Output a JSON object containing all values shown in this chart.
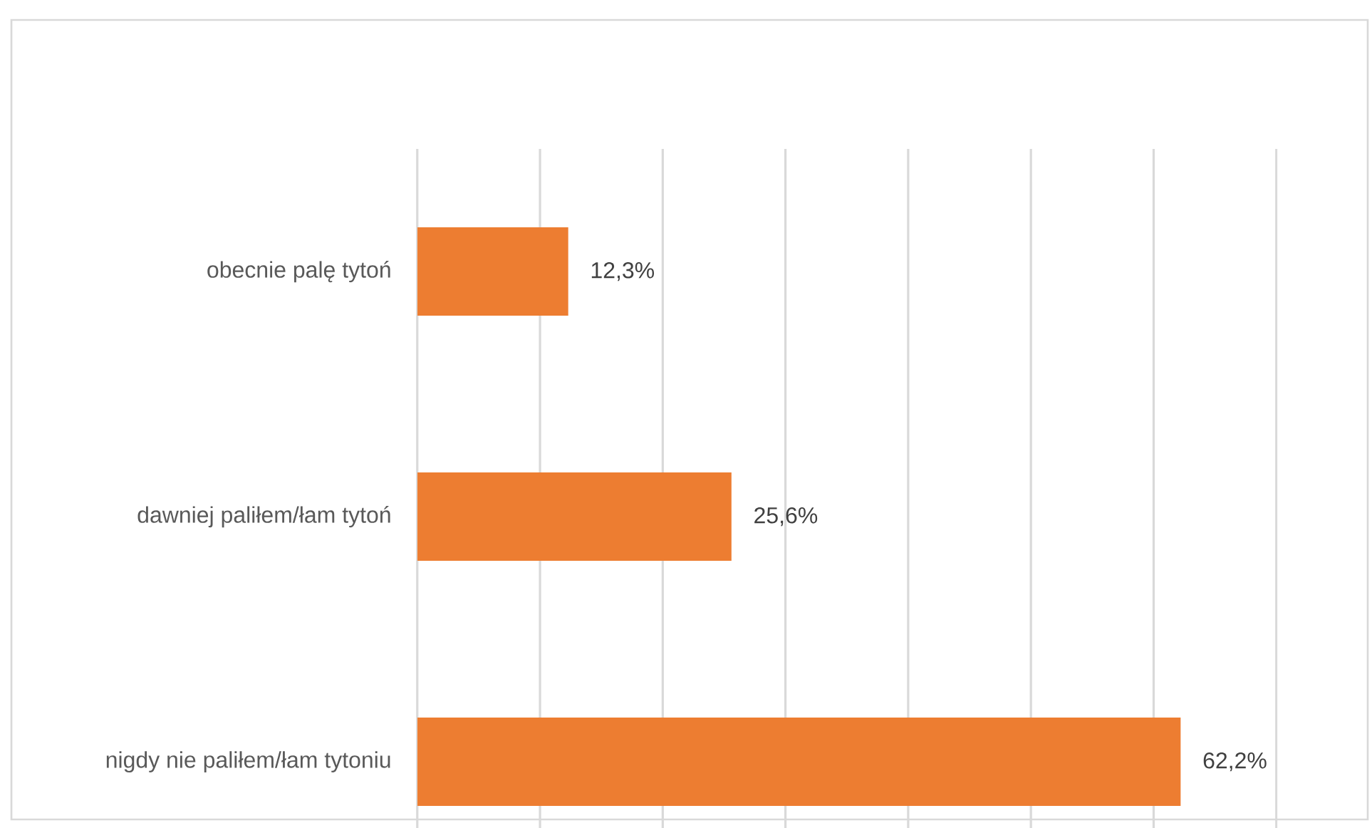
{
  "chart_data": {
    "type": "bar",
    "orientation": "horizontal",
    "categories": [
      "obecnie palę tytoń",
      "dawniej paliłem/łam tytoń",
      "nigdy nie paliłem/łam tytoniu"
    ],
    "values": [
      12.3,
      25.6,
      62.2
    ],
    "value_labels": [
      "12,3%",
      "25,6%",
      "62,2%"
    ],
    "color": "#ed7d31",
    "xlim": [
      0,
      70
    ],
    "xticks": [
      {
        "value": 0,
        "label": null
      },
      {
        "value": 10,
        "label": null
      },
      {
        "value": 20,
        "label": null
      },
      {
        "value": 30,
        "label": null
      },
      {
        "value": 40,
        "label": null
      },
      {
        "value": 50,
        "label": null
      },
      {
        "value": 60,
        "label": null
      },
      {
        "value": 70,
        "label": null
      }
    ],
    "grid": "x",
    "tick_labels": "y"
  }
}
